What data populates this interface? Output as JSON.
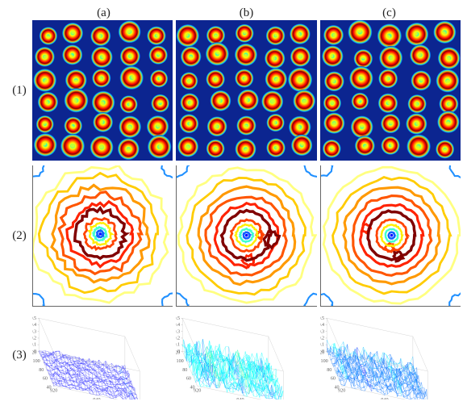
{
  "columns": [
    "(a)",
    "(b)",
    "(c)"
  ],
  "rows": [
    "(1)",
    "(2)",
    "(3)"
  ],
  "jet_colormap": [
    "#000090",
    "#0000ff",
    "#0070ff",
    "#00ffff",
    "#50ff90",
    "#ffff00",
    "#ff8000",
    "#ff0000",
    "#800000"
  ],
  "row1": {
    "type": "heatmap-grid",
    "background_color": "#0c2590",
    "description": "grid of circular blob heatmaps with jet colormap",
    "grid": {
      "cols": 5,
      "rows": 6
    },
    "blob_radius": 0.075,
    "panels": [
      {
        "radii_jitter": 0.012,
        "pos_jitter": 0.018
      },
      {
        "radii_jitter": 0.014,
        "pos_jitter": 0.02
      },
      {
        "radii_jitter": 0.013,
        "pos_jitter": 0.019
      }
    ]
  },
  "row2": {
    "type": "contour",
    "background_color": "#ffffff",
    "description": "concentric contour rings around center with jet colors",
    "levels": [
      {
        "r": 0.48,
        "color": "#ffff80",
        "width": 1.6
      },
      {
        "r": 0.41,
        "color": "#ffcc00",
        "width": 1.6
      },
      {
        "r": 0.34,
        "color": "#ff9900",
        "width": 1.8
      },
      {
        "r": 0.28,
        "color": "#ff5500",
        "width": 1.8
      },
      {
        "r": 0.22,
        "color": "#ff2200",
        "width": 1.8
      },
      {
        "r": 0.17,
        "color": "#800000",
        "width": 2.0
      },
      {
        "r": 0.11,
        "color": "#ff4400",
        "width": 1.6
      },
      {
        "r": 0.075,
        "color": "#ffee00",
        "width": 1.4
      },
      {
        "r": 0.045,
        "color": "#40ffd0",
        "width": 1.4
      },
      {
        "r": 0.022,
        "color": "#1060ff",
        "width": 1.4
      }
    ],
    "panels": [
      {
        "irregularity": 0.06,
        "center_offset": [
          -0.02,
          -0.01
        ]
      },
      {
        "irregularity": 0.035,
        "center_offset": [
          0,
          0
        ]
      },
      {
        "irregularity": 0.025,
        "center_offset": [
          0.005,
          0
        ]
      }
    ],
    "corner_arcs_color": "#2090ff"
  },
  "row3": {
    "type": "surface-3d",
    "background_color": "#ffffff",
    "description": "3D surface over rectangular domain, z noise field",
    "x_range": [
      920,
      960
    ],
    "y_range": [
      40,
      120
    ],
    "y_ticks": [
      40,
      60,
      80,
      100,
      120
    ],
    "x_ticks": [
      920,
      940,
      960
    ],
    "axis_fontsize": 6,
    "grid_color": "#cccccc",
    "panels": [
      {
        "z_range": [
          0,
          0.5
        ],
        "z_ticks": [
          0,
          0.1,
          0.2,
          0.3,
          0.4,
          0.5
        ],
        "noise_amp": 0.18,
        "mesh_mix": 0.35
      },
      {
        "z_range": [
          0,
          0.5
        ],
        "z_ticks": [
          0,
          0.1,
          0.2,
          0.3,
          0.4,
          0.5
        ],
        "noise_amp": 0.55,
        "mesh_mix": 0.65
      },
      {
        "z_range": [
          0,
          0.5
        ],
        "z_ticks": [
          0,
          0.1,
          0.2,
          0.3,
          0.4,
          0.5
        ],
        "noise_amp": 0.4,
        "mesh_mix": 0.55
      }
    ]
  }
}
